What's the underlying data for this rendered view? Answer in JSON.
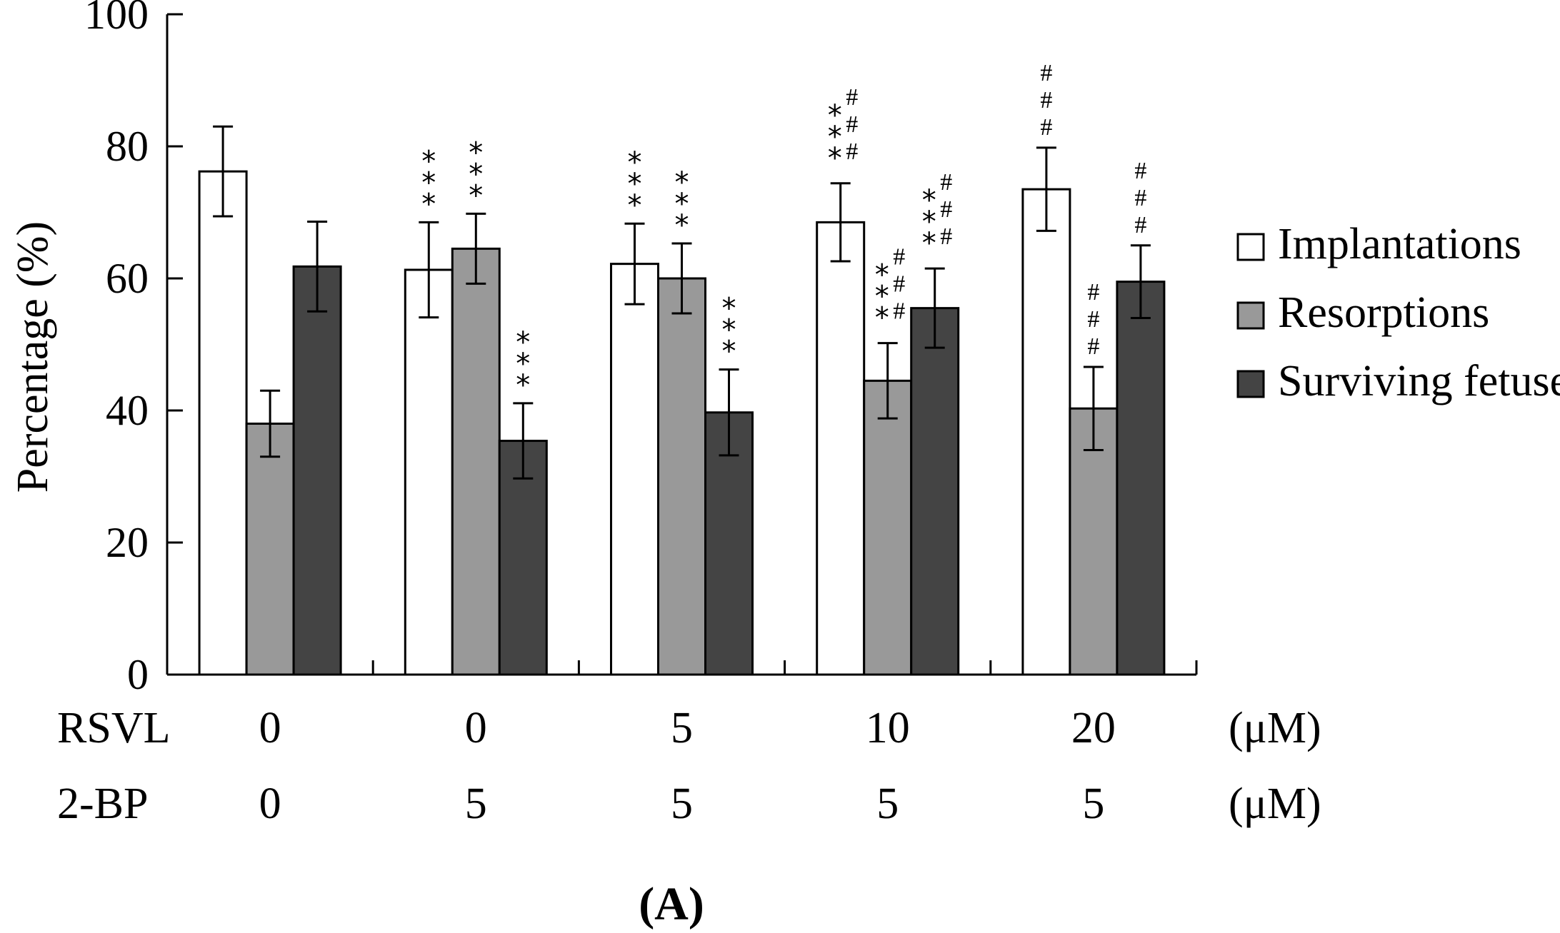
{
  "chart_data": {
    "type": "bar",
    "ylabel": "Percentage (%)",
    "ylim": [
      0,
      100
    ],
    "yticks": [
      0,
      20,
      40,
      60,
      80,
      100
    ],
    "groups": [
      {
        "rsvl": "0",
        "bp": "0"
      },
      {
        "rsvl": "0",
        "bp": "5"
      },
      {
        "rsvl": "5",
        "bp": "5"
      },
      {
        "rsvl": "10",
        "bp": "5"
      },
      {
        "rsvl": "20",
        "bp": "5"
      }
    ],
    "row_labels": {
      "rsvl": "RSVL",
      "bp": "2-BP",
      "unit": "(μM)"
    },
    "series": [
      {
        "name": "Implantations",
        "color": "#ffffff",
        "values": [
          76.2,
          61.3,
          62.2,
          68.5,
          73.5
        ],
        "errors": [
          6.8,
          7.2,
          6.1,
          5.9,
          6.3
        ],
        "stars": [
          0,
          3,
          3,
          3,
          0
        ],
        "hashes": [
          0,
          0,
          0,
          3,
          3
        ]
      },
      {
        "name": "Resorptions",
        "color": "#999999",
        "values": [
          38.0,
          64.5,
          60.0,
          44.5,
          40.3
        ],
        "errors": [
          5.0,
          5.3,
          5.3,
          5.7,
          6.3
        ],
        "stars": [
          0,
          3,
          3,
          3,
          0
        ],
        "hashes": [
          0,
          0,
          0,
          3,
          3
        ]
      },
      {
        "name": "Surviving fetuses",
        "color": "#444444",
        "values": [
          61.8,
          35.4,
          39.7,
          55.5,
          59.5
        ],
        "errors": [
          6.8,
          5.7,
          6.5,
          6.0,
          5.5
        ],
        "stars": [
          0,
          3,
          3,
          3,
          0
        ],
        "hashes": [
          0,
          0,
          0,
          3,
          3
        ]
      }
    ],
    "annotation_symbols": {
      "star": "*",
      "hash": "#"
    },
    "panel_label": "(A)"
  }
}
